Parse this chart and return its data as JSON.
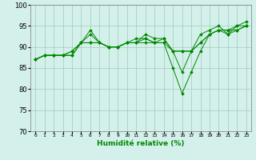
{
  "title": "",
  "xlabel": "Humidité relative (%)",
  "ylabel": "",
  "xlim": [
    -0.5,
    23.5
  ],
  "ylim": [
    70,
    100
  ],
  "yticks": [
    70,
    75,
    80,
    85,
    90,
    95,
    100
  ],
  "xtick_labels": [
    "0",
    "1",
    "2",
    "3",
    "4",
    "5",
    "6",
    "7",
    "8",
    "9",
    "10",
    "11",
    "12",
    "13",
    "14",
    "15",
    "16",
    "17",
    "18",
    "19",
    "20",
    "21",
    "22",
    "23"
  ],
  "background_color": "#d4f0eb",
  "grid_color": "#a0ccbb",
  "line_color": "#008800",
  "series": [
    [
      87,
      88,
      88,
      88,
      88,
      91,
      93,
      91,
      90,
      90,
      91,
      91,
      92,
      91,
      91,
      85,
      79,
      84,
      89,
      93,
      94,
      93,
      94,
      95
    ],
    [
      87,
      88,
      88,
      88,
      88,
      91,
      94,
      91,
      90,
      90,
      91,
      91,
      93,
      92,
      92,
      89,
      84,
      89,
      93,
      94,
      95,
      93,
      95,
      96
    ],
    [
      87,
      88,
      88,
      88,
      89,
      91,
      91,
      91,
      90,
      90,
      91,
      91,
      91,
      91,
      91,
      89,
      89,
      89,
      91,
      93,
      94,
      94,
      94,
      95
    ],
    [
      87,
      88,
      88,
      88,
      89,
      91,
      91,
      91,
      90,
      90,
      91,
      92,
      92,
      91,
      92,
      89,
      89,
      89,
      91,
      93,
      94,
      94,
      95,
      95
    ]
  ]
}
